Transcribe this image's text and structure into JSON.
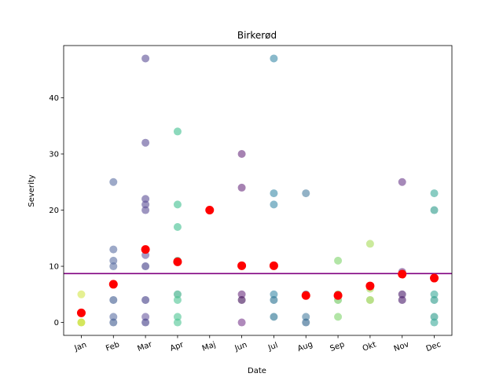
{
  "chart_data": {
    "type": "scatter",
    "title": "Birkerød",
    "xlabel": "Date",
    "ylabel": "Severity",
    "categories": [
      "Jan",
      "Feb",
      "Mar",
      "Apr",
      "Maj",
      "Jun",
      "Jul",
      "Aug",
      "Sep",
      "Okt",
      "Nov",
      "Dec"
    ],
    "ylim": [
      -2.3,
      49.3
    ],
    "yticks": [
      0,
      10,
      20,
      30,
      40
    ],
    "grid": false,
    "legend": "none",
    "mean_line": {
      "value": 8.7,
      "color": "#800080"
    },
    "monthly_means": {
      "color": "#ff0000",
      "values": [
        1.7,
        6.8,
        13.0,
        10.8,
        20.0,
        10.1,
        10.1,
        4.8,
        4.8,
        6.5,
        8.6,
        7.9
      ]
    },
    "points": [
      {
        "x": "Jan",
        "y": 5,
        "color": "#d4e64a"
      },
      {
        "x": "Jan",
        "y": 0,
        "color": "#d4e64a"
      },
      {
        "x": "Jan",
        "y": 0,
        "color": "#c8e03a"
      },
      {
        "x": "Feb",
        "y": 25,
        "color": "#5b6fa3"
      },
      {
        "x": "Feb",
        "y": 13,
        "color": "#5b6fa3"
      },
      {
        "x": "Feb",
        "y": 11,
        "color": "#5b6fa3"
      },
      {
        "x": "Feb",
        "y": 10,
        "color": "#5b6fa3"
      },
      {
        "x": "Feb",
        "y": 4,
        "color": "#3e5a8f"
      },
      {
        "x": "Feb",
        "y": 1,
        "color": "#5b6fa3"
      },
      {
        "x": "Feb",
        "y": 0,
        "color": "#3e5a8f"
      },
      {
        "x": "Mar",
        "y": 47,
        "color": "#5c4f96"
      },
      {
        "x": "Mar",
        "y": 32,
        "color": "#5c4f96"
      },
      {
        "x": "Mar",
        "y": 22,
        "color": "#5c4f96"
      },
      {
        "x": "Mar",
        "y": 21,
        "color": "#5c4f96"
      },
      {
        "x": "Mar",
        "y": 20,
        "color": "#5c4f96"
      },
      {
        "x": "Mar",
        "y": 12,
        "color": "#6a5aa0"
      },
      {
        "x": "Mar",
        "y": 10,
        "color": "#3f3a85"
      },
      {
        "x": "Mar",
        "y": 4,
        "color": "#3f3a85"
      },
      {
        "x": "Mar",
        "y": 1,
        "color": "#6a5aa0"
      },
      {
        "x": "Mar",
        "y": 0,
        "color": "#3f3a85"
      },
      {
        "x": "Apr",
        "y": 34,
        "color": "#3fbf8f"
      },
      {
        "x": "Apr",
        "y": 21,
        "color": "#3fbf8f"
      },
      {
        "x": "Apr",
        "y": 17,
        "color": "#3fbf8f"
      },
      {
        "x": "Apr",
        "y": 11,
        "color": "#3fbf8f"
      },
      {
        "x": "Apr",
        "y": 5,
        "color": "#2ea87e"
      },
      {
        "x": "Apr",
        "y": 4,
        "color": "#4cc493"
      },
      {
        "x": "Apr",
        "y": 1,
        "color": "#4cc493"
      },
      {
        "x": "Apr",
        "y": 0,
        "color": "#4cc493"
      },
      {
        "x": "Jun",
        "y": 30,
        "color": "#6a2e7e"
      },
      {
        "x": "Jun",
        "y": 24,
        "color": "#6a2e7e"
      },
      {
        "x": "Jun",
        "y": 5,
        "color": "#6a2e7e"
      },
      {
        "x": "Jun",
        "y": 4,
        "color": "#3d0b55"
      },
      {
        "x": "Jun",
        "y": 0,
        "color": "#7a3a8e"
      },
      {
        "x": "Jul",
        "y": 47,
        "color": "#3a8aa8"
      },
      {
        "x": "Jul",
        "y": 23,
        "color": "#3a8aa8"
      },
      {
        "x": "Jul",
        "y": 21,
        "color": "#3a8aa8"
      },
      {
        "x": "Jul",
        "y": 5,
        "color": "#3a8aa8"
      },
      {
        "x": "Jul",
        "y": 4,
        "color": "#256f8f"
      },
      {
        "x": "Jul",
        "y": 1,
        "color": "#256f8f"
      },
      {
        "x": "Aug",
        "y": 23,
        "color": "#4a7fa0"
      },
      {
        "x": "Aug",
        "y": 5,
        "color": "#4a7fa0"
      },
      {
        "x": "Aug",
        "y": 1,
        "color": "#4a7fa0"
      },
      {
        "x": "Aug",
        "y": 0,
        "color": "#2a5f88"
      },
      {
        "x": "Sep",
        "y": 11,
        "color": "#7fd46a"
      },
      {
        "x": "Sep",
        "y": 5,
        "color": "#6ac65a"
      },
      {
        "x": "Sep",
        "y": 4,
        "color": "#6ac65a"
      },
      {
        "x": "Sep",
        "y": 1,
        "color": "#7fd46a"
      },
      {
        "x": "Okt",
        "y": 14,
        "color": "#a8dc5a"
      },
      {
        "x": "Okt",
        "y": 6,
        "color": "#a8dc5a"
      },
      {
        "x": "Okt",
        "y": 4,
        "color": "#8acc3a"
      },
      {
        "x": "Nov",
        "y": 25,
        "color": "#6a3a8a"
      },
      {
        "x": "Nov",
        "y": 9,
        "color": "#6a3a8a"
      },
      {
        "x": "Nov",
        "y": 5,
        "color": "#4a1a6a"
      },
      {
        "x": "Nov",
        "y": 4,
        "color": "#4a1a6a"
      },
      {
        "x": "Dec",
        "y": 23,
        "color": "#3aaa9a"
      },
      {
        "x": "Dec",
        "y": 20,
        "color": "#2a9a88"
      },
      {
        "x": "Dec",
        "y": 5,
        "color": "#3aaa9a"
      },
      {
        "x": "Dec",
        "y": 4,
        "color": "#2a9a88"
      },
      {
        "x": "Dec",
        "y": 1,
        "color": "#2a9a88"
      },
      {
        "x": "Dec",
        "y": 0,
        "color": "#3aaa9a"
      }
    ]
  }
}
